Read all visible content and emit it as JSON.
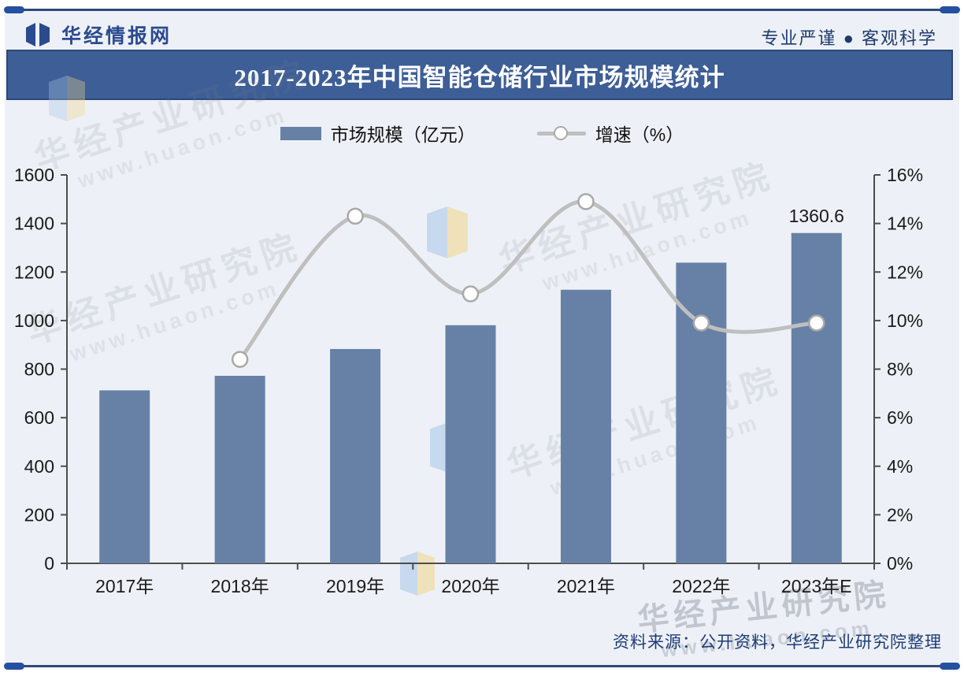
{
  "header": {
    "brand": "华经情报网",
    "tagline": "专业严谨 ● 客观科学"
  },
  "title": "2017-2023年中国智能仓储行业市场规模统计",
  "footer": {
    "source_note": "资料来源：公开资料，华经产业研究院整理"
  },
  "watermark": {
    "text": "华经产业研究院",
    "url": "www.huaon.com"
  },
  "colors": {
    "bar": "#6781a6",
    "line": "#bfbfbf",
    "marker_fill": "#ffffff",
    "marker_stroke": "#a9a9a9",
    "title_bar_bg": "#3d5e96",
    "title_text": "#ffffff",
    "accent_dark": "#1f3a6e",
    "brand_blue": "#2b4a8f",
    "axis": "#4d4d4d",
    "tick_text": "#1a1a1a"
  },
  "chart_data": {
    "type": "bar+line",
    "title": "2017-2023年中国智能仓储行业市场规模统计",
    "categories": [
      "2017年",
      "2018年",
      "2019年",
      "2020年",
      "2021年",
      "2022年",
      "2023年E"
    ],
    "series": [
      {
        "name": "市场规模（亿元）",
        "type": "bar",
        "axis": "left",
        "values": [
          712.5,
          772.4,
          882.8,
          980.8,
          1126.9,
          1238.5,
          1360.6
        ]
      },
      {
        "name": "增速（%）",
        "type": "line",
        "axis": "right",
        "values": [
          null,
          8.4,
          14.3,
          11.1,
          14.9,
          9.9,
          9.9
        ]
      }
    ],
    "left_axis": {
      "min": 0,
      "max": 1600,
      "step": 200,
      "suffix": ""
    },
    "right_axis": {
      "min": 0,
      "max": 16,
      "step": 2,
      "suffix": "%"
    },
    "data_label": {
      "category_index": 6,
      "text": "1360.6"
    },
    "grid": false,
    "legend_position": "top"
  }
}
